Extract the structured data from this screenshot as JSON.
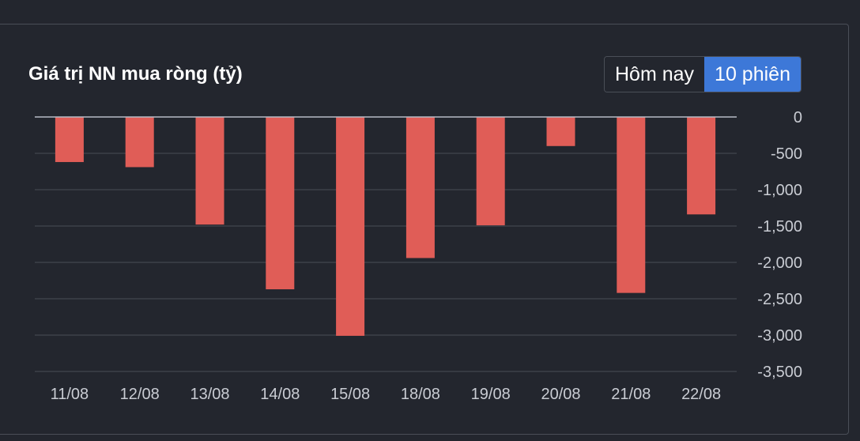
{
  "header": {
    "title": "Giá trị NN mua ròng (tỷ)",
    "tabs": [
      {
        "label": "Hôm nay",
        "active": false
      },
      {
        "label": "10 phiên",
        "active": true
      }
    ]
  },
  "colors": {
    "background": "#23262e",
    "bar": "#e05d57",
    "active_tab": "#3d78d8",
    "grid": "#4a4e57",
    "zero_line": "#b8bcc6",
    "tick_text": "#c9ccd3"
  },
  "chart_data": {
    "type": "bar",
    "title": "Giá trị NN mua ròng (tỷ)",
    "categories": [
      "11/08",
      "12/08",
      "13/08",
      "14/08",
      "15/08",
      "18/08",
      "19/08",
      "20/08",
      "21/08",
      "22/08"
    ],
    "values": [
      -620,
      -690,
      -1480,
      -2370,
      -3010,
      -1940,
      -1490,
      -400,
      -2420,
      -1340
    ],
    "ylim": [
      -3500,
      0
    ],
    "yticks": [
      0,
      -500,
      -1000,
      -1500,
      -2000,
      -2500,
      -3000,
      -3500
    ],
    "ytick_labels": [
      "0",
      "-500",
      "-1,000",
      "-1,500",
      "-2,000",
      "-2,500",
      "-3,000",
      "-3,500"
    ],
    "y_axis_position": "right",
    "grid": true,
    "legend": "none"
  }
}
